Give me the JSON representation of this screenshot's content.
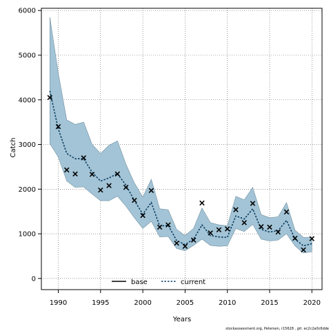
{
  "chart_data": {
    "type": "line",
    "xlabel": "Years",
    "ylabel": "Catch",
    "xlim": [
      1988,
      2021.2
    ],
    "ylim": [
      -250,
      6050
    ],
    "x_ticks": [
      1990,
      1995,
      2000,
      2005,
      2010,
      2015,
      2020
    ],
    "y_ticks": [
      0,
      1000,
      2000,
      3000,
      4000,
      5000,
      6000
    ],
    "grid": true,
    "legend_position": "bottom-center",
    "years": [
      1989,
      1990,
      1991,
      1992,
      1993,
      1994,
      1995,
      1996,
      1997,
      1998,
      1999,
      2000,
      2001,
      2002,
      2003,
      2004,
      2005,
      2006,
      2007,
      2008,
      2009,
      2010,
      2011,
      2012,
      2013,
      2014,
      2015,
      2016,
      2017,
      2018,
      2019,
      2020
    ],
    "band": {
      "color": "#a3c4d6",
      "upper": [
        5850,
        4600,
        3550,
        3450,
        3500,
        3000,
        2800,
        2980,
        3080,
        2560,
        2140,
        1820,
        2220,
        1560,
        1540,
        1100,
        960,
        1120,
        1580,
        1250,
        1200,
        1180,
        1840,
        1760,
        2040,
        1430,
        1360,
        1380,
        1700,
        1080,
        920,
        920
      ],
      "lower": [
        3020,
        2720,
        2180,
        2040,
        2050,
        1890,
        1740,
        1740,
        1840,
        1620,
        1360,
        1120,
        1280,
        930,
        940,
        670,
        620,
        740,
        880,
        740,
        720,
        730,
        1120,
        1050,
        1210,
        880,
        840,
        860,
        1000,
        730,
        570,
        600
      ]
    },
    "series": [
      {
        "name": "current",
        "color": "#0a3d62",
        "values": [
          4200,
          3350,
          2800,
          2680,
          2680,
          2380,
          2180,
          2250,
          2350,
          2090,
          1750,
          1440,
          1700,
          1170,
          1190,
          850,
          760,
          880,
          1200,
          960,
          930,
          920,
          1400,
          1330,
          1560,
          1100,
          1040,
          1070,
          1300,
          880,
          730,
          780
        ]
      }
    ],
    "observations": {
      "name": "base",
      "values": [
        4050,
        3400,
        2430,
        2340,
        2700,
        2330,
        1980,
        2080,
        2340,
        2040,
        1750,
        1410,
        1970,
        1150,
        1200,
        790,
        720,
        860,
        1690,
        1020,
        1090,
        1110,
        1540,
        1250,
        1680,
        1160,
        1150,
        1040,
        1490,
        900,
        640,
        890
      ]
    },
    "legend": {
      "base": "base",
      "current": "current"
    },
    "footnote": "stockassessment.org, Petersen, r15628 , git: ec2c2a0c6dde"
  }
}
